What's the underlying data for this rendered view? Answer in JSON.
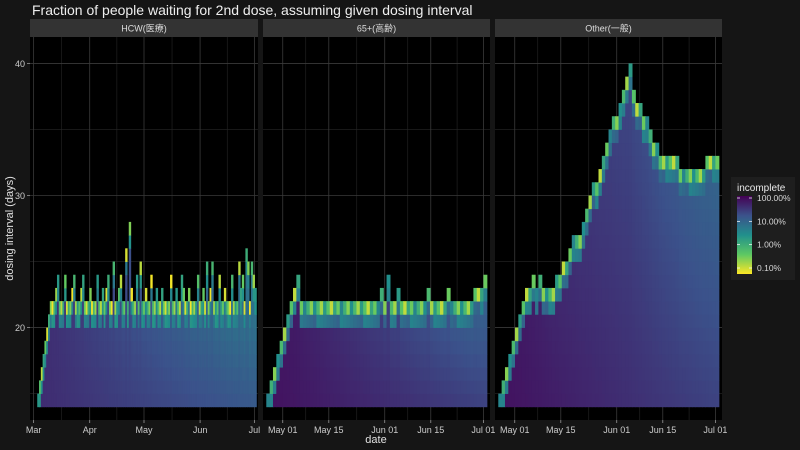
{
  "chart_data": {
    "type": "heatmap",
    "title": "Fraction of people waiting for 2nd dose, assuming given dosing interval",
    "xlabel": "date",
    "ylabel": "dosing interval (days)",
    "y_ticks": [
      "20",
      "30",
      "40"
    ],
    "y_range": [
      13,
      42
    ],
    "legend": {
      "title": "incomplete",
      "labels": [
        "100.00%",
        "10.00%",
        "1.00%",
        "0.10%"
      ],
      "scale": "log",
      "placement": "right",
      "colors": [
        "#440154",
        "#3b528b",
        "#21908c",
        "#5dc863",
        "#fde725"
      ]
    },
    "panels": [
      {
        "name": "HCW(医療)",
        "x_tick_labels": [
          "Mar",
          "Apr",
          "May",
          "Jun",
          "Jul"
        ],
        "x_tick_dates": [
          "2021-03-01",
          "2021-04-01",
          "2021-05-01",
          "2021-06-01",
          "2021-07-01"
        ],
        "x_range": [
          "2021-02-27",
          "2021-07-03"
        ],
        "series": [
          {
            "x_start": "2021-03-03",
            "x_end": "2021-07-01",
            "top_interval": [
              14,
              15,
              16,
              17,
              18,
              19,
              20,
              21,
              21,
              21,
              22,
              23,
              21,
              21,
              21,
              23,
              21,
              21,
              21,
              22,
              23,
              21,
              21,
              21,
              22,
              23,
              21,
              21,
              21,
              22,
              21,
              21,
              21,
              23,
              21,
              21,
              22,
              21,
              22,
              23,
              21,
              21,
              24,
              21,
              21,
              22,
              23,
              21,
              21,
              25,
              21,
              27,
              22,
              21,
              21,
              23,
              21,
              24,
              21,
              21,
              22,
              21,
              21,
              23,
              21,
              21,
              22,
              21,
              21,
              22,
              21,
              21,
              21,
              21,
              23,
              21,
              21,
              22,
              21,
              21,
              23,
              22,
              21,
              21,
              22,
              21,
              21,
              21,
              21,
              23,
              21,
              21,
              22,
              21,
              24,
              21,
              22,
              24,
              21,
              21,
              21,
              23,
              21,
              21,
              22,
              21,
              21,
              21,
              23,
              21,
              21,
              21,
              24,
              22,
              23,
              21,
              25,
              24,
              21,
              24,
              23,
              22
            ]
          }
        ]
      },
      {
        "name": "65+(高齢)",
        "x_tick_labels": [
          "May 01",
          "May 15",
          "Jun 01",
          "Jun 15",
          "Jul 01"
        ],
        "x_tick_dates": [
          "2021-05-01",
          "2021-05-15",
          "2021-06-01",
          "2021-06-15",
          "2021-07-01"
        ],
        "x_range": [
          "2021-04-25",
          "2021-07-03"
        ],
        "series": [
          {
            "x_start": "2021-04-26",
            "x_end": "2021-07-01",
            "top_interval": [
              14,
              15,
              16,
              17,
              18,
              19,
              20,
              21,
              22,
              23,
              21,
              21,
              21,
              21,
              21,
              21,
              21,
              21,
              21,
              21,
              21,
              21,
              21,
              21,
              21,
              21,
              21,
              21,
              21,
              21,
              21,
              21,
              21,
              21,
              22,
              21,
              23,
              21,
              21,
              22,
              21,
              21,
              21,
              21,
              21,
              21,
              21,
              21,
              22,
              21,
              21,
              21,
              21,
              21,
              22,
              21,
              21,
              21,
              21,
              21,
              21,
              21,
              22,
              22,
              22,
              23
            ]
          }
        ]
      },
      {
        "name": "Other(一般)",
        "x_tick_labels": [
          "May 01",
          "May 15",
          "Jun 01",
          "Jun 15",
          "Jul 01"
        ],
        "x_tick_dates": [
          "2021-05-01",
          "2021-05-15",
          "2021-06-01",
          "2021-06-15",
          "2021-07-01"
        ],
        "x_range": [
          "2021-04-25",
          "2021-07-03"
        ],
        "series": [
          {
            "x_start": "2021-04-26",
            "x_end": "2021-07-01",
            "top_interval": [
              14,
              15,
              16,
              17,
              18,
              19,
              20,
              21,
              22,
              22,
              23,
              22,
              23,
              22,
              22,
              22,
              22,
              23,
              23,
              24,
              24,
              25,
              26,
              26,
              26,
              27,
              28,
              29,
              30,
              30,
              31,
              32,
              33,
              34,
              35,
              35,
              36,
              37,
              38,
              39,
              37,
              36,
              36,
              35,
              35,
              34,
              33,
              33,
              32,
              32,
              32,
              32,
              32,
              32,
              31,
              31,
              31,
              31,
              31,
              31,
              31,
              31,
              32,
              32,
              32,
              32
            ]
          }
        ]
      }
    ]
  }
}
